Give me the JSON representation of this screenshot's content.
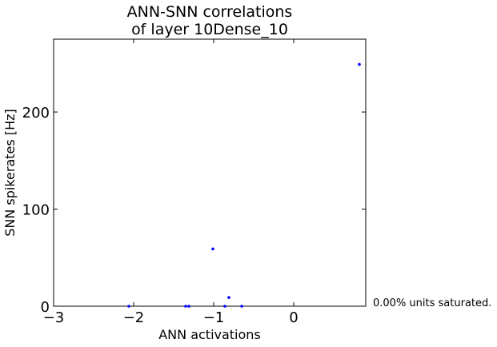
{
  "chart_data": {
    "type": "scatter",
    "title_lines": [
      "ANN-SNN correlations",
      "of layer 10Dense_10"
    ],
    "xlabel": "ANN activations",
    "ylabel": "SNN spikerates [Hz]",
    "xlim": [
      -3,
      0.9
    ],
    "ylim": [
      0,
      275
    ],
    "xticks": [
      {
        "value": -3,
        "label": "−3"
      },
      {
        "value": -2,
        "label": "−2"
      },
      {
        "value": -1,
        "label": "−1"
      },
      {
        "value": 0,
        "label": "0"
      }
    ],
    "yticks": [
      {
        "value": 0,
        "label": "0"
      },
      {
        "value": 100,
        "label": "100"
      },
      {
        "value": 200,
        "label": "200"
      }
    ],
    "grid": false,
    "marker_color": "#0000ff",
    "points": [
      {
        "x": -2.06,
        "y": 0
      },
      {
        "x": -1.35,
        "y": 0
      },
      {
        "x": -1.31,
        "y": 0
      },
      {
        "x": -1.01,
        "y": 59
      },
      {
        "x": -0.86,
        "y": 0
      },
      {
        "x": -0.81,
        "y": 9
      },
      {
        "x": -0.65,
        "y": 0
      },
      {
        "x": 0.82,
        "y": 249
      }
    ],
    "annotation": "0.00% units saturated."
  }
}
